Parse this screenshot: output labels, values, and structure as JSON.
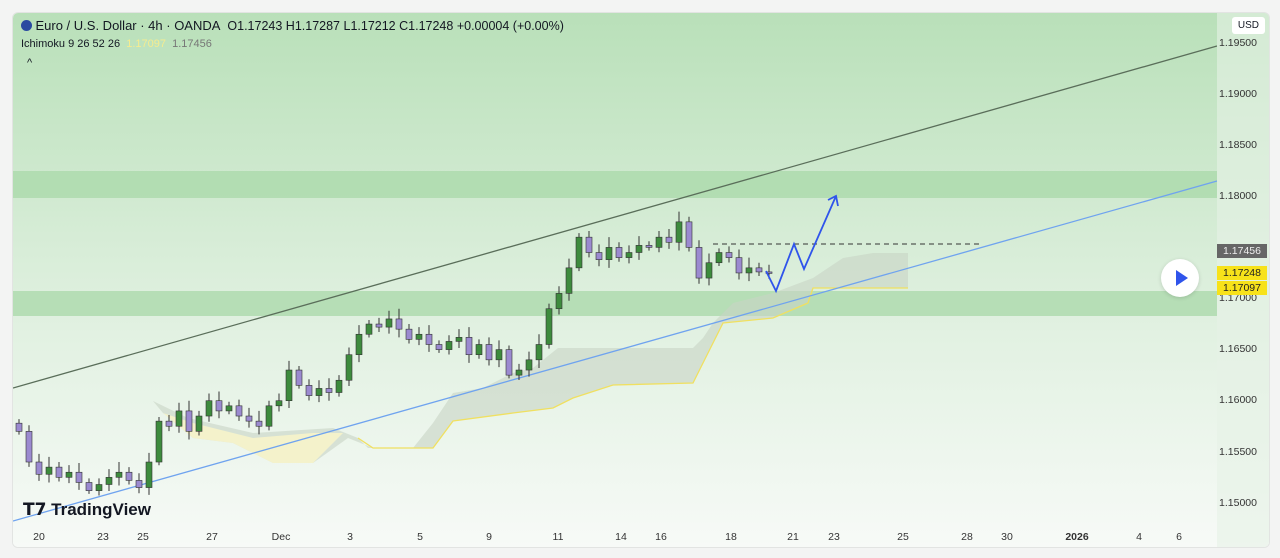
{
  "header": {
    "symbol": "Euro / U.S. Dollar · 4h · OANDA",
    "open_label": "O",
    "open": "1.17243",
    "high_label": "H",
    "high": "1.17287",
    "low_label": "L",
    "low": "1.17212",
    "close_label": "C",
    "close": "1.17248",
    "change": "+0.00004 (+0.00%)"
  },
  "indicator": {
    "name": "Ichimoku 9 26 52 26",
    "value1": "1.17097",
    "value2": "1.17456",
    "collapse": "^"
  },
  "currency": "USD",
  "logo": "TradingView",
  "price_axis": [
    "1.19500",
    "1.19000",
    "1.18500",
    "1.18000",
    "1.17000",
    "1.16500",
    "1.16000",
    "1.15500",
    "1.15000"
  ],
  "price_tags": {
    "ichimoku": "1.17456",
    "last": "1.17248",
    "span": "1.17097"
  },
  "time_axis": [
    "20",
    "23",
    "25",
    "27",
    "Dec",
    "3",
    "5",
    "9",
    "11",
    "14",
    "16",
    "18",
    "21",
    "23",
    "25",
    "28",
    "30",
    "2026",
    "4",
    "6"
  ],
  "colors": {
    "up": "#3d8b3d",
    "down": "#9b8ad0",
    "trend_upper": "#5a6e5a",
    "trend_lower": "#6fa3ef",
    "projection": "#2f54eb",
    "cloud": "#c8d4c4",
    "span_b": "#f0e060",
    "zone": "#a8d8a8"
  },
  "chart_data": {
    "type": "candlestick",
    "ylim": [
      1.148,
      1.198
    ],
    "closes": [
      1.157,
      1.154,
      1.1528,
      1.1535,
      1.1525,
      1.153,
      1.152,
      1.1512,
      1.1518,
      1.1525,
      1.153,
      1.1522,
      1.1515,
      1.154,
      1.158,
      1.1575,
      1.159,
      1.157,
      1.1585,
      1.16,
      1.159,
      1.1595,
      1.1585,
      1.158,
      1.1575,
      1.1595,
      1.16,
      1.163,
      1.1615,
      1.1605,
      1.1612,
      1.1608,
      1.162,
      1.1645,
      1.1665,
      1.1675,
      1.1672,
      1.168,
      1.167,
      1.166,
      1.1665,
      1.1655,
      1.165,
      1.1658,
      1.1662,
      1.1645,
      1.1655,
      1.164,
      1.165,
      1.1625,
      1.163,
      1.164,
      1.1655,
      1.169,
      1.1705,
      1.173,
      1.176,
      1.1745,
      1.1738,
      1.175,
      1.174,
      1.1745,
      1.1752,
      1.175,
      1.176,
      1.1755,
      1.1775,
      1.175,
      1.172,
      1.1735,
      1.1745,
      1.174,
      1.1725,
      1.173,
      1.1726,
      1.17248
    ]
  }
}
